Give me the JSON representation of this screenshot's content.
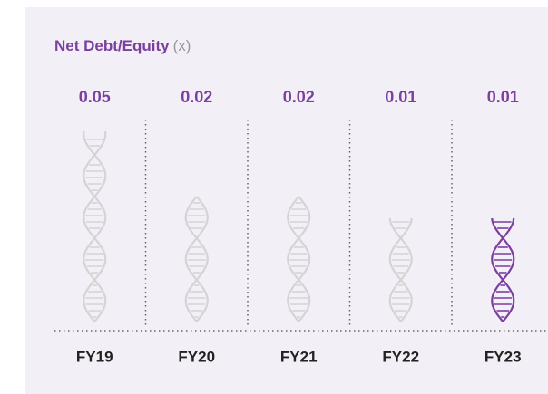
{
  "chart_data": {
    "type": "pictogram",
    "title": "Net Debt/Equity",
    "title_unit": "(x)",
    "categories": [
      "FY19",
      "FY20",
      "FY21",
      "FY22",
      "FY23"
    ],
    "values": [
      0.05,
      0.02,
      0.02,
      0.01,
      0.01
    ],
    "colors": [
      "#d4d4d4",
      "#d4d4d4",
      "#d4d4d4",
      "#d4d4d4",
      "#7b3fa0"
    ],
    "value_color": "#7b3fa0",
    "title_color": "#7b3fa0"
  }
}
